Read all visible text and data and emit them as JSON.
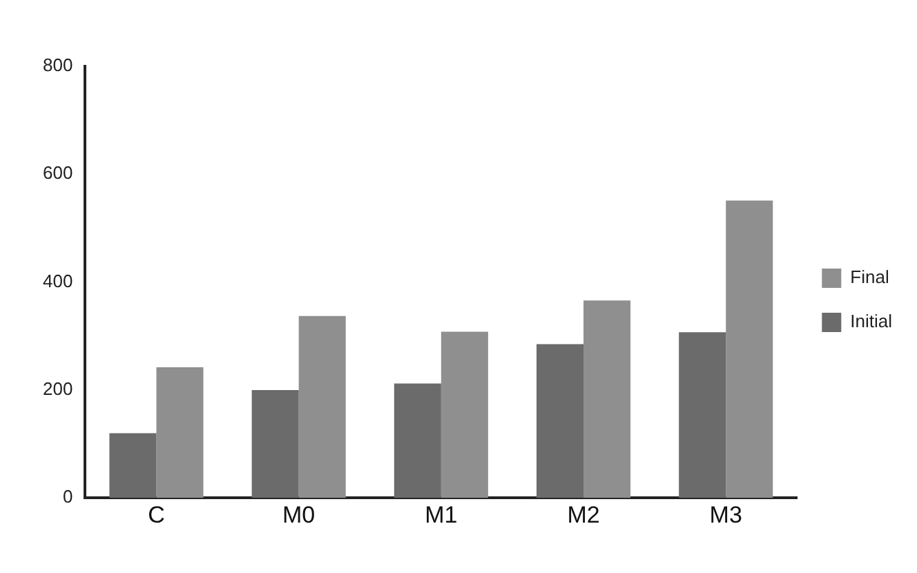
{
  "chart_data": {
    "type": "bar",
    "categories": [
      "C",
      "M0",
      "M1",
      "M2",
      "M3"
    ],
    "series": [
      {
        "name": "Initial",
        "color": "#6b6b6b",
        "values": [
          120,
          200,
          212,
          285,
          307
        ]
      },
      {
        "name": "Final",
        "color": "#8f8f8f",
        "values": [
          242,
          337,
          308,
          366,
          551
        ]
      }
    ],
    "ylim": [
      0,
      800
    ],
    "yticks": [
      0,
      200,
      400,
      600,
      800
    ],
    "grid": false,
    "legend": "right"
  }
}
